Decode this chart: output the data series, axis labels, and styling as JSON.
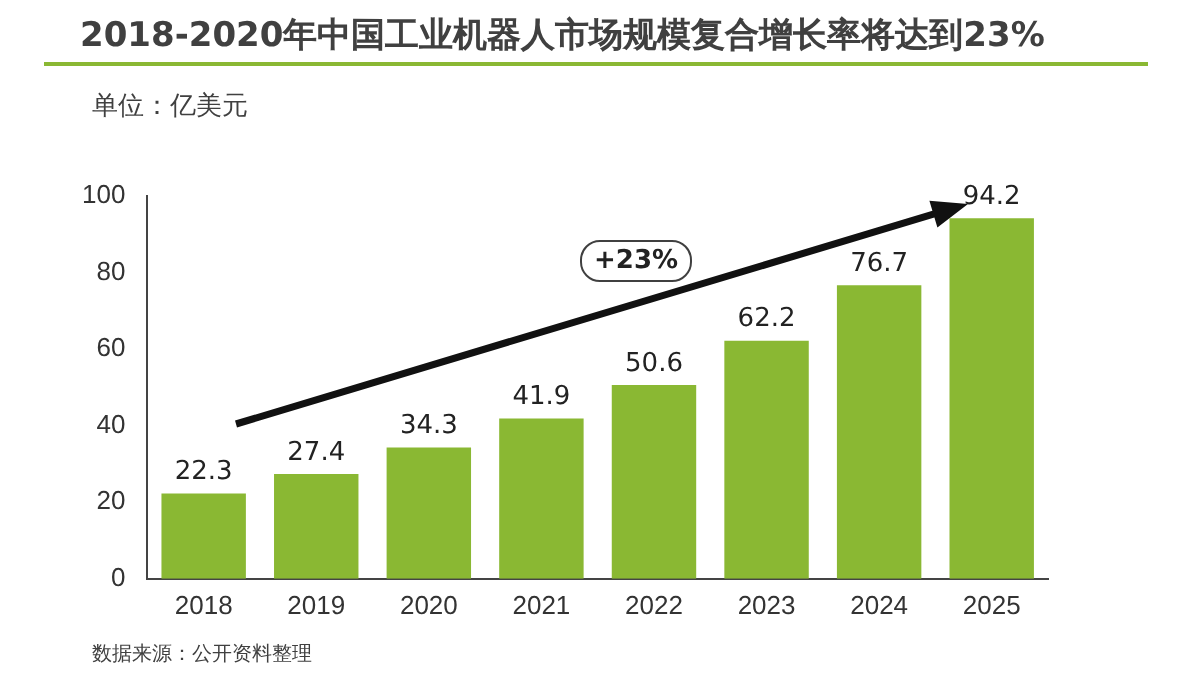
{
  "chart_data": {
    "type": "bar",
    "title": "2018-2020年中国工业机器人市场规模复合增长率将达到23%",
    "ylabel": "单位：亿美元",
    "categories": [
      "2018",
      "2019",
      "2020",
      "2021",
      "2022",
      "2023",
      "2024",
      "2025"
    ],
    "values": [
      22.3,
      27.4,
      34.3,
      41.9,
      50.6,
      62.2,
      76.7,
      94.2
    ],
    "color": "#8ab833",
    "ylim": [
      0,
      100
    ],
    "yticks": [
      0,
      20,
      40,
      60,
      80,
      100
    ],
    "grid": false,
    "legend": false,
    "data_labels": true,
    "annotations": [
      "+23%",
      "数据来源：公开资料整理"
    ]
  }
}
